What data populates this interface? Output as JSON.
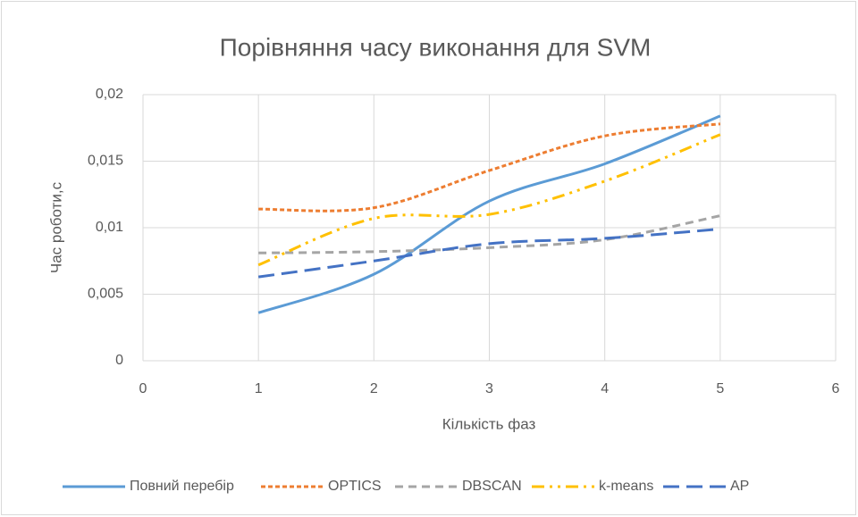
{
  "chart_data": {
    "type": "line",
    "title": "Порівняння часу виконання для SVM",
    "x_label": "Кількість фаз",
    "y_label": "Час роботи,с",
    "x": [
      1,
      2,
      3,
      4,
      5
    ],
    "series": [
      {
        "name": "Повний перебір",
        "color": "#5b9bd5",
        "dash": "solid",
        "values": [
          0.0036,
          0.0065,
          0.012,
          0.0148,
          0.0184
        ]
      },
      {
        "name": "OPTICS",
        "color": "#ed7d31",
        "dash": "dot",
        "values": [
          0.0114,
          0.0115,
          0.0143,
          0.0169,
          0.0178
        ]
      },
      {
        "name": "DBSCAN",
        "color": "#a5a5a5",
        "dash": "dash",
        "values": [
          0.0081,
          0.0082,
          0.0085,
          0.0091,
          0.0109
        ]
      },
      {
        "name": "k-means",
        "color": "#ffc000",
        "dash": "dash-dot-dot",
        "values": [
          0.0072,
          0.0107,
          0.011,
          0.0135,
          0.017
        ]
      },
      {
        "name": "AP",
        "color": "#4472c4",
        "dash": "long-dash",
        "values": [
          0.0063,
          0.0075,
          0.0088,
          0.0092,
          0.0099
        ]
      }
    ],
    "xlim": [
      0,
      6
    ],
    "xticks": [
      0,
      1,
      2,
      3,
      4,
      5,
      6
    ],
    "ylim": [
      0,
      0.02
    ],
    "yticks": [
      0,
      {
        "value": 0.005,
        "label": "0,005"
      },
      {
        "value": 0.01,
        "label": "0,01"
      },
      {
        "value": 0.015,
        "label": "0,015"
      },
      {
        "value": 0.02,
        "label": "0,02"
      }
    ],
    "grid": true,
    "smooth": true,
    "legend": "bottom"
  }
}
